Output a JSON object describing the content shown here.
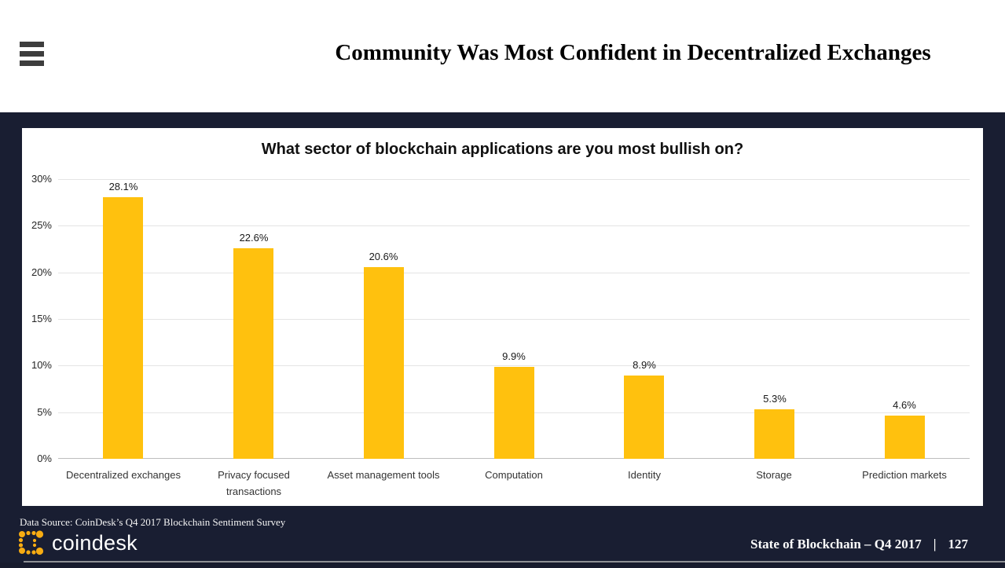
{
  "header": {
    "title": "Community Was Most Confident in Decentralized Exchanges"
  },
  "chart_data": {
    "type": "bar",
    "title": "What sector of blockchain applications are you most bullish on?",
    "categories": [
      "Decentralized exchanges",
      "Privacy focused transactions",
      "Asset management tools",
      "Computation",
      "Identity",
      "Storage",
      "Prediction markets"
    ],
    "values": [
      28.1,
      22.6,
      20.6,
      9.9,
      8.9,
      5.3,
      4.6
    ],
    "value_labels": [
      "28.1%",
      "22.6%",
      "20.6%",
      "9.9%",
      "8.9%",
      "5.3%",
      "4.6%"
    ],
    "y_ticks": [
      "30%",
      "25%",
      "20%",
      "15%",
      "10%",
      "5%",
      "0%"
    ],
    "ylim": [
      0,
      30
    ],
    "xlabel": "",
    "ylabel": "",
    "grid": true,
    "legend": "none",
    "bar_color": "#FFC10E"
  },
  "footer": {
    "data_source": "Data Source: CoinDesk’s Q4 2017 Blockchain Sentiment Survey",
    "logo_text": "coindesk",
    "deck_title": "State of Blockchain – Q4 2017",
    "separator": "|",
    "page_number": "127"
  },
  "colors": {
    "background_dark": "#191E32",
    "bar": "#FFC10E",
    "logo_yellow": "#F7AC12",
    "gridline": "#E4E4E4"
  }
}
